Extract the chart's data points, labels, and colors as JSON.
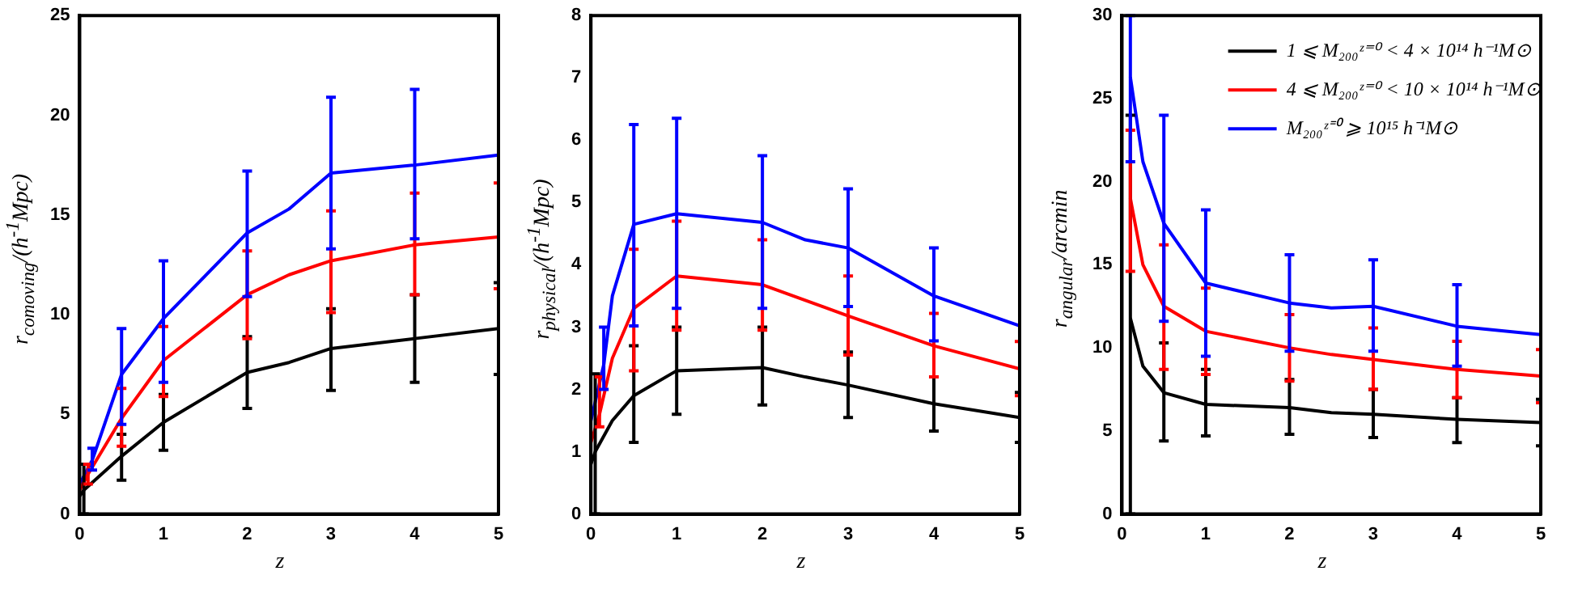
{
  "chart_data": [
    {
      "type": "line",
      "xlabel": "z",
      "ylabel": "r$_{comoving}$/(h$^{-1}$Mpc)",
      "xlim": [
        0,
        5
      ],
      "xticks": [
        0,
        1,
        2,
        3,
        4,
        5
      ],
      "ylim": [
        0,
        25
      ],
      "yticks": [
        0,
        5,
        10,
        15,
        20,
        25
      ],
      "grid": false,
      "series": [
        {
          "color": "#000000",
          "x": [
            0,
            0.05,
            0.5,
            1,
            2,
            2.5,
            3,
            4,
            5
          ],
          "values": [
            0.9,
            1.2,
            2.9,
            4.6,
            7.1,
            7.6,
            8.3,
            8.8,
            9.3
          ],
          "errors": [
            null,
            [
              0,
              2.5
            ],
            [
              1.7,
              4.0
            ],
            [
              3.2,
              6.0
            ],
            [
              5.3,
              8.9
            ],
            null,
            [
              6.2,
              10.3
            ],
            [
              6.6,
              11.0
            ],
            [
              7.0,
              11.6
            ]
          ]
        },
        {
          "color": "#ff0000",
          "x": [
            0,
            0.1,
            0.5,
            1,
            2,
            2.5,
            3,
            4,
            5
          ],
          "values": [
            1.2,
            2.0,
            4.8,
            7.7,
            11.0,
            12.0,
            12.7,
            13.5,
            13.9
          ],
          "errors": [
            null,
            [
              1.5,
              2.5
            ],
            [
              3.4,
              6.3
            ],
            [
              5.9,
              9.4
            ],
            [
              8.8,
              13.2
            ],
            null,
            [
              10.1,
              15.2
            ],
            [
              11.0,
              16.1
            ],
            [
              11.3,
              16.6
            ]
          ]
        },
        {
          "color": "#0000ff",
          "x": [
            0,
            0.15,
            0.5,
            1,
            2,
            2.5,
            3,
            4,
            5
          ],
          "values": [
            1.5,
            2.7,
            7.0,
            9.8,
            14.1,
            15.3,
            17.1,
            17.5,
            18.0
          ],
          "errors": [
            null,
            [
              2.2,
              3.3
            ],
            [
              4.5,
              9.3
            ],
            [
              6.6,
              12.7
            ],
            [
              10.9,
              17.2
            ],
            null,
            [
              13.3,
              20.9
            ],
            [
              13.8,
              21.3
            ],
            null
          ]
        }
      ]
    },
    {
      "type": "line",
      "xlabel": "z",
      "ylabel": "r$_{physical}$/(h$^{-1}$Mpc)",
      "xlim": [
        0,
        5
      ],
      "xticks": [
        0,
        1,
        2,
        3,
        4,
        5
      ],
      "ylim": [
        0,
        8
      ],
      "yticks": [
        0,
        1,
        2,
        3,
        4,
        5,
        6,
        7,
        8
      ],
      "grid": false,
      "series": [
        {
          "color": "#000000",
          "x": [
            0,
            0.05,
            0.25,
            0.5,
            1,
            2,
            2.5,
            3,
            4,
            5
          ],
          "values": [
            0.8,
            1.0,
            1.5,
            1.9,
            2.3,
            2.35,
            2.2,
            2.07,
            1.77,
            1.55
          ],
          "errors": [
            null,
            [
              0,
              2.25
            ],
            null,
            [
              1.15,
              2.7
            ],
            [
              1.6,
              3.0
            ],
            [
              1.75,
              3.0
            ],
            null,
            [
              1.55,
              2.6
            ],
            [
              1.33,
              2.2
            ],
            [
              1.15,
              1.95
            ]
          ]
        },
        {
          "color": "#ff0000",
          "x": [
            0,
            0.1,
            0.25,
            0.5,
            1,
            2,
            3,
            4,
            5
          ],
          "values": [
            1.15,
            1.6,
            2.5,
            3.3,
            3.82,
            3.68,
            3.18,
            2.7,
            2.33
          ],
          "errors": [
            null,
            [
              1.4,
              2.2
            ],
            null,
            [
              2.3,
              4.25
            ],
            [
              2.95,
              4.7
            ],
            [
              2.95,
              4.4
            ],
            [
              2.55,
              3.82
            ],
            [
              2.2,
              3.22
            ],
            [
              1.9,
              2.77
            ]
          ]
        },
        {
          "color": "#0000ff",
          "x": [
            0,
            0.15,
            0.25,
            0.5,
            1,
            2,
            2.5,
            3,
            4,
            5
          ],
          "values": [
            1.5,
            2.4,
            3.5,
            4.65,
            4.82,
            4.68,
            4.4,
            4.27,
            3.5,
            3.02
          ],
          "errors": [
            null,
            [
              2.0,
              3.0
            ],
            null,
            [
              3.02,
              6.25
            ],
            [
              3.3,
              6.35
            ],
            [
              3.3,
              5.75
            ],
            null,
            [
              3.33,
              5.22
            ],
            [
              2.78,
              4.27
            ],
            null
          ]
        }
      ]
    },
    {
      "type": "line",
      "xlabel": "z",
      "ylabel": "r$_{angular}$/arcmin",
      "xlim": [
        0,
        5
      ],
      "xticks": [
        0,
        1,
        2,
        3,
        4,
        5
      ],
      "ylim": [
        0,
        30
      ],
      "yticks": [
        0,
        5,
        10,
        15,
        20,
        25,
        30
      ],
      "grid": false,
      "legend": "top right",
      "series": [
        {
          "name": "1 ⩽ M₂₀₀ᶻ⁼⁰ < 4 × 10¹⁴ h⁻¹M⊙",
          "color": "#000000",
          "x": [
            0.1,
            0.25,
            0.5,
            1,
            2,
            2.5,
            3,
            4,
            5
          ],
          "values": [
            11.8,
            8.9,
            7.3,
            6.6,
            6.4,
            6.1,
            6.0,
            5.7,
            5.5
          ],
          "errors": [
            [
              0,
              24
            ],
            null,
            [
              4.4,
              10.3
            ],
            [
              4.7,
              8.7
            ],
            [
              4.8,
              8.1
            ],
            null,
            [
              4.6,
              7.5
            ],
            [
              4.3,
              7.0
            ],
            [
              4.1,
              6.9
            ]
          ]
        },
        {
          "name": "4 ⩽ M₂₀₀ᶻ⁼⁰ < 10 × 10¹⁴ h⁻¹M⊙",
          "color": "#ff0000",
          "x": [
            0.1,
            0.25,
            0.5,
            1,
            2,
            2.5,
            3,
            4,
            5
          ],
          "values": [
            19.0,
            15.0,
            12.5,
            11.0,
            10.0,
            9.6,
            9.3,
            8.7,
            8.3
          ],
          "errors": [
            [
              14.6,
              23.1
            ],
            null,
            [
              8.7,
              16.2
            ],
            [
              8.4,
              13.6
            ],
            [
              8.0,
              12.0
            ],
            null,
            [
              7.5,
              11.2
            ],
            [
              7.0,
              10.4
            ],
            [
              6.7,
              9.9
            ]
          ]
        },
        {
          "name": "M₂₀₀ᶻ⁼⁰ ⩾ 10¹⁵ h⁻¹M⊙",
          "color": "#0000ff",
          "x": [
            0.1,
            0.25,
            0.5,
            1,
            2,
            2.5,
            3,
            4,
            5
          ],
          "values": [
            26.3,
            21.2,
            17.5,
            13.9,
            12.7,
            12.4,
            12.5,
            11.3,
            10.8
          ],
          "errors": [
            [
              21.2,
              30
            ],
            null,
            [
              11.6,
              24
            ],
            [
              9.5,
              18.3
            ],
            [
              9.8,
              15.6
            ],
            null,
            [
              9.8,
              15.3
            ],
            [
              8.9,
              13.8
            ],
            null
          ]
        }
      ]
    }
  ]
}
